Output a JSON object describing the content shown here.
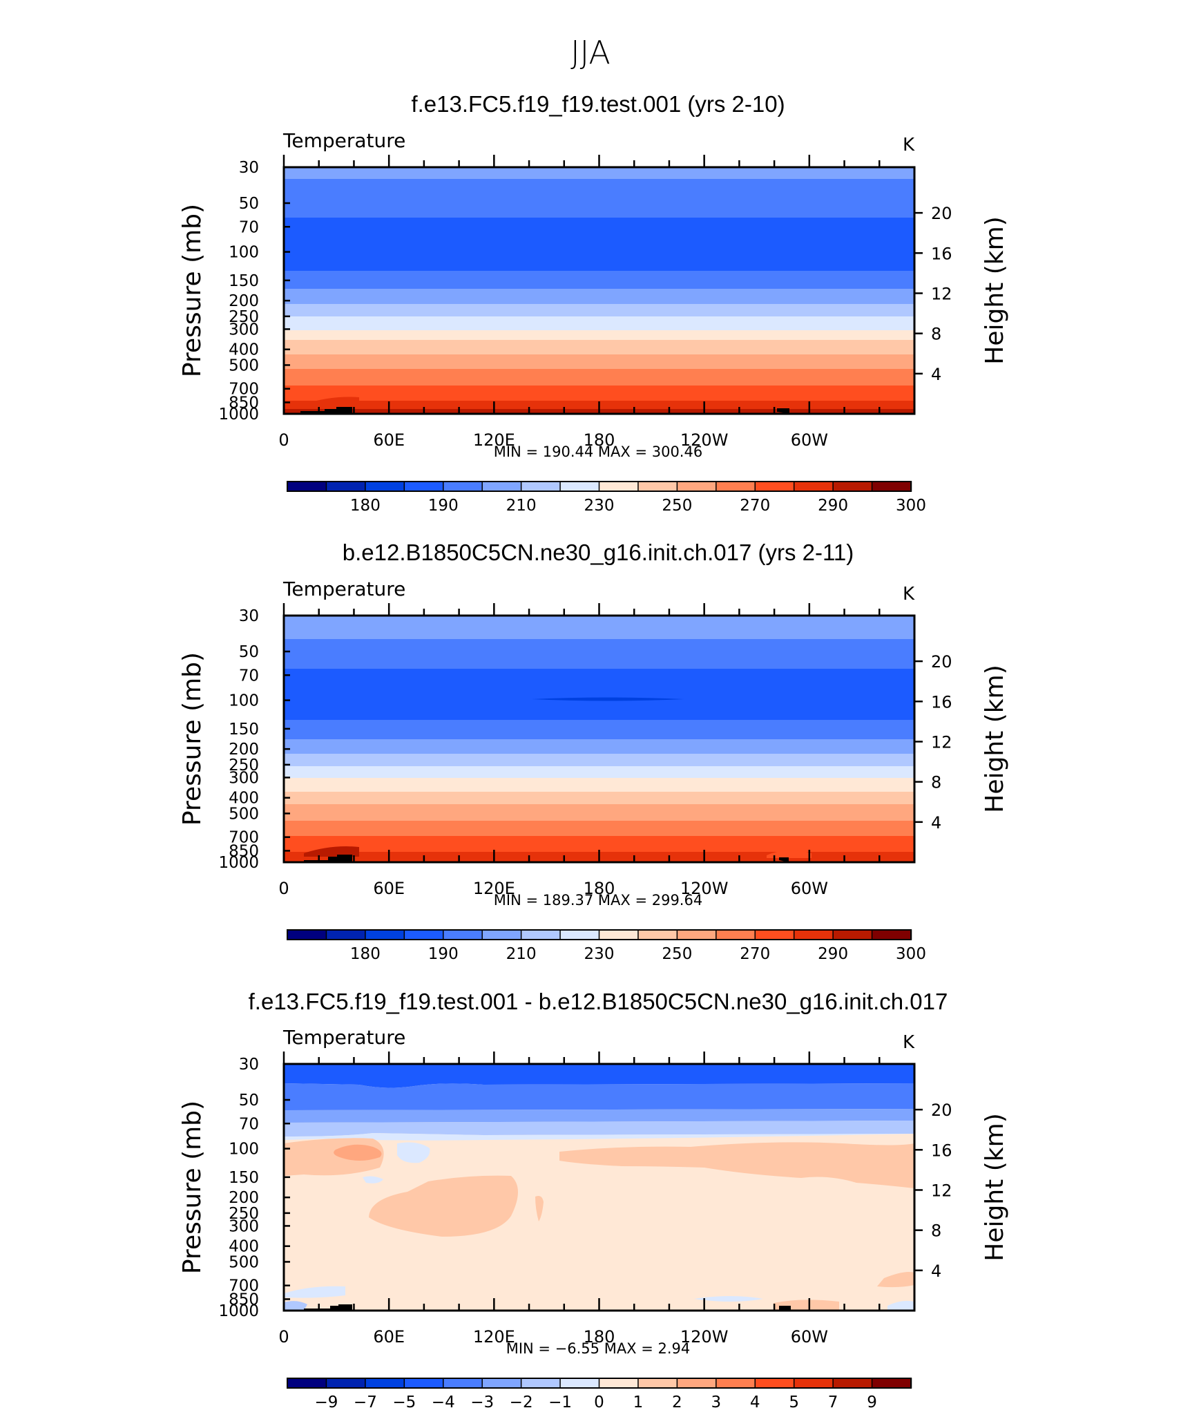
{
  "figure_title": "JJA",
  "ui": {
    "k_ticks": [
      "20",
      "16",
      "12",
      "8",
      "4"
    ]
  },
  "chart_data": [
    {
      "type": "contour",
      "title": "f.e13.FC5.f19_f19.test.001 (yrs 2-10)",
      "variable_label": "Temperature",
      "units": "K",
      "ylabel": "Pressure (mb)",
      "ylabel_right": "Height (km)",
      "x_tick_labels": [
        "0",
        "60E",
        "120E",
        "180",
        "120W",
        "60W"
      ],
      "y_tick_labels": [
        "30",
        "50",
        "70",
        "100",
        "150",
        "200",
        "250",
        "300",
        "400",
        "500",
        "700",
        "850",
        "1000"
      ],
      "right_tick_labels": [
        "20",
        "16",
        "12",
        "8",
        "4"
      ],
      "min_max_text": "MIN = 190.44   MAX = 300.46",
      "colorbar_labels": [
        "180",
        "190",
        "210",
        "230",
        "250",
        "270",
        "290",
        "300"
      ],
      "colorbar_colors": [
        "#00007f",
        "#0023b0",
        "#0041e0",
        "#1c5bff",
        "#4a7dff",
        "#7fa5ff",
        "#b0c8ff",
        "#dbe8ff",
        "#ffe8d6",
        "#ffc8a8",
        "#ffa77f",
        "#ff7f50",
        "#ff4e1f",
        "#e6320a",
        "#b81a00",
        "#7f0000"
      ],
      "min": 190.44,
      "max": 300.46
    },
    {
      "type": "contour",
      "title": "b.e12.B1850C5CN.ne30_g16.init.ch.017 (yrs 2-11)",
      "variable_label": "Temperature",
      "units": "K",
      "ylabel": "Pressure (mb)",
      "ylabel_right": "Height (km)",
      "x_tick_labels": [
        "0",
        "60E",
        "120E",
        "180",
        "120W",
        "60W"
      ],
      "y_tick_labels": [
        "30",
        "50",
        "70",
        "100",
        "150",
        "200",
        "250",
        "300",
        "400",
        "500",
        "700",
        "850",
        "1000"
      ],
      "right_tick_labels": [
        "20",
        "16",
        "12",
        "8",
        "4"
      ],
      "min_max_text": "MIN = 189.37   MAX = 299.64",
      "colorbar_labels": [
        "180",
        "190",
        "210",
        "230",
        "250",
        "270",
        "290",
        "300"
      ],
      "colorbar_colors": [
        "#00007f",
        "#0023b0",
        "#0041e0",
        "#1c5bff",
        "#4a7dff",
        "#7fa5ff",
        "#b0c8ff",
        "#dbe8ff",
        "#ffe8d6",
        "#ffc8a8",
        "#ffa77f",
        "#ff7f50",
        "#ff4e1f",
        "#e6320a",
        "#b81a00",
        "#7f0000"
      ],
      "min": 189.37,
      "max": 299.64
    },
    {
      "type": "contour",
      "title": "f.e13.FC5.f19_f19.test.001 - b.e12.B1850C5CN.ne30_g16.init.ch.017",
      "variable_label": "Temperature",
      "units": "K",
      "ylabel": "Pressure (mb)",
      "ylabel_right": "Height (km)",
      "x_tick_labels": [
        "0",
        "60E",
        "120E",
        "180",
        "120W",
        "60W"
      ],
      "y_tick_labels": [
        "30",
        "50",
        "70",
        "100",
        "150",
        "200",
        "250",
        "300",
        "400",
        "500",
        "700",
        "850",
        "1000"
      ],
      "right_tick_labels": [
        "20",
        "16",
        "12",
        "8",
        "4"
      ],
      "min_max_text": "MIN = −6.55   MAX = 2.94",
      "colorbar_labels": [
        "−9",
        "−7",
        "−5",
        "−4",
        "−3",
        "−2",
        "−1",
        "0",
        "1",
        "2",
        "3",
        "4",
        "5",
        "7",
        "9"
      ],
      "colorbar_colors": [
        "#00007f",
        "#0023b0",
        "#0041e0",
        "#1c5bff",
        "#4a7dff",
        "#7fa5ff",
        "#b0c8ff",
        "#dbe8ff",
        "#ffe8d6",
        "#ffc8a8",
        "#ffa77f",
        "#ff7f50",
        "#ff4e1f",
        "#e6320a",
        "#b81a00",
        "#7f0000"
      ],
      "min": -6.55,
      "max": 2.94
    }
  ]
}
